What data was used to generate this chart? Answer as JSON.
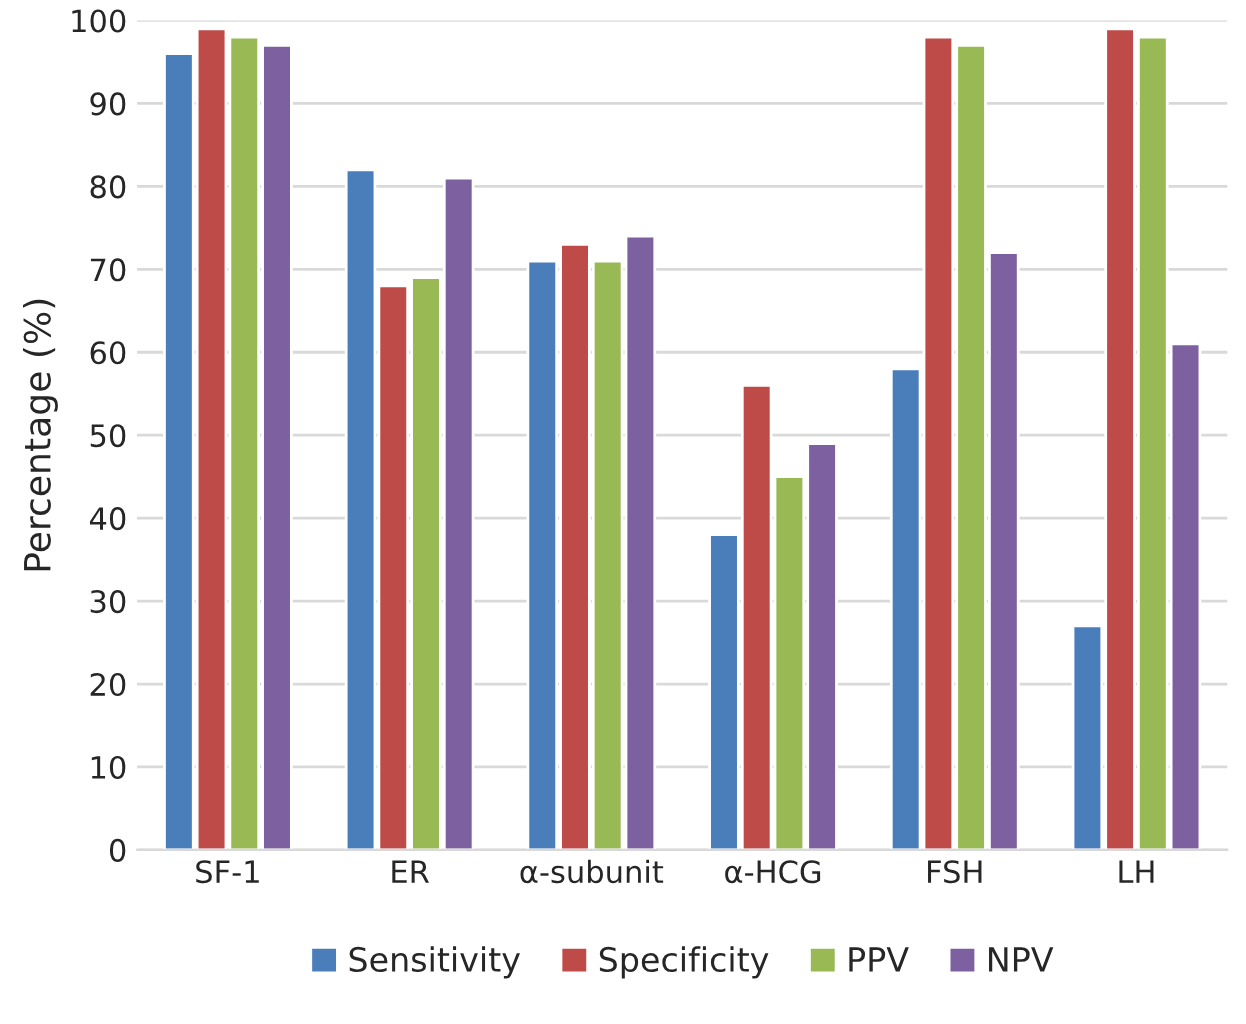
{
  "chart_data": {
    "type": "bar",
    "ylabel": "Percentage (%)",
    "categories": [
      "SF-1",
      "ER",
      "α-subunit",
      "α-HCG",
      "FSH",
      "LH"
    ],
    "series": [
      {
        "name": "Sensitivity",
        "color": "#4a7ebb",
        "values": [
          96,
          82,
          71,
          38,
          58,
          27
        ]
      },
      {
        "name": "Specificity",
        "color": "#be4b48",
        "values": [
          99,
          68,
          73,
          56,
          98,
          99
        ]
      },
      {
        "name": "PPV",
        "color": "#98b954",
        "values": [
          98,
          69,
          71,
          45,
          97,
          98
        ]
      },
      {
        "name": "NPV",
        "color": "#7d60a0",
        "values": [
          97,
          81,
          74,
          49,
          72,
          61
        ]
      }
    ],
    "ylim": [
      0,
      100
    ],
    "yticks": [
      0,
      10,
      20,
      30,
      40,
      50,
      60,
      70,
      80,
      90,
      100
    ],
    "grid": "y",
    "legend": "bottom"
  }
}
